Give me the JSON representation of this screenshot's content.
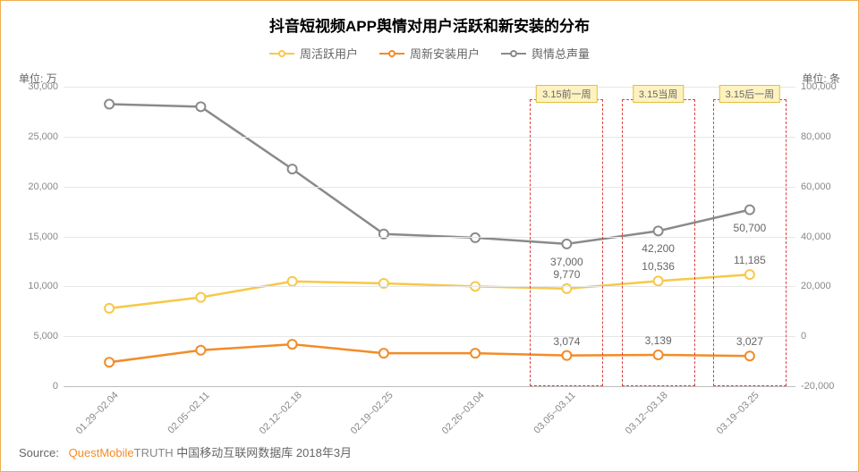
{
  "title": "抖音短视频APP舆情对用户活跃和新安装的分布",
  "title_fontsize": 17,
  "unit_left": "单位: 万",
  "unit_right": "单位: 条",
  "legend": [
    {
      "label": "周活跃用户",
      "color": "#f7c948"
    },
    {
      "label": "周新安装用户",
      "color": "#f28c28"
    },
    {
      "label": "舆情总声量",
      "color": "#8a8a8a"
    }
  ],
  "categories": [
    "01.29~02.04",
    "02.05~02.11",
    "02.12~02.18",
    "02.19~02.25",
    "02.26~03.04",
    "03.05~03.11",
    "03.12~03.18",
    "03.19~03.25"
  ],
  "left_axis": {
    "min": 0,
    "max": 30000,
    "step": 5000,
    "ticks": [
      "0",
      "5,000",
      "10,000",
      "15,000",
      "20,000",
      "25,000",
      "30,000"
    ]
  },
  "right_axis": {
    "min": -20000,
    "max": 100000,
    "step": 20000,
    "ticks": [
      "-20,000",
      "0",
      "20,000",
      "40,000",
      "60,000",
      "80,000",
      "100,000"
    ]
  },
  "series": {
    "weekly_active": {
      "axis": "left",
      "color": "#f7c948",
      "line_width": 2.5,
      "marker_size": 5,
      "values": [
        7800,
        8900,
        10500,
        10300,
        10000,
        9770,
        10536,
        11185
      ]
    },
    "weekly_install": {
      "axis": "left",
      "color": "#f28c28",
      "line_width": 2.5,
      "marker_size": 5,
      "values": [
        2400,
        3600,
        4200,
        3300,
        3300,
        3074,
        3139,
        3027
      ]
    },
    "sentiment_total": {
      "axis": "right",
      "color": "#8a8a8a",
      "line_width": 2.5,
      "marker_size": 5,
      "values": [
        93000,
        92000,
        67000,
        41000,
        39500,
        37000,
        42200,
        50700
      ]
    }
  },
  "annotations": [
    {
      "index": 5,
      "label": "3.15前一周"
    },
    {
      "index": 6,
      "label": "3.15当周"
    },
    {
      "index": 7,
      "label": "3.15后一周"
    }
  ],
  "data_labels": [
    {
      "text": "37,000",
      "index": 5,
      "series": "sentiment_total",
      "dy": 20
    },
    {
      "text": "42,200",
      "index": 6,
      "series": "sentiment_total",
      "dy": 20
    },
    {
      "text": "50,700",
      "index": 7,
      "series": "sentiment_total",
      "dy": 20
    },
    {
      "text": "9,770",
      "index": 5,
      "series": "weekly_active",
      "dy": -16
    },
    {
      "text": "10,536",
      "index": 6,
      "series": "weekly_active",
      "dy": -16
    },
    {
      "text": "11,185",
      "index": 7,
      "series": "weekly_active",
      "dy": -16
    },
    {
      "text": "3,074",
      "index": 5,
      "series": "weekly_install",
      "dy": -16
    },
    {
      "text": "3,139",
      "index": 6,
      "series": "weekly_install",
      "dy": -16
    },
    {
      "text": "3,027",
      "index": 7,
      "series": "weekly_install",
      "dy": -16
    }
  ],
  "annotation_box": {
    "border_color": "#d94040"
  },
  "grid_color": "#e6e6e6",
  "baseline_color": "#bdbdbd",
  "background_color": "#ffffff",
  "source": {
    "prefix": "Source:",
    "brand1": "QuestMobile",
    "brand2": "TRUTH",
    "rest": " 中国移动互联网数据库 2018年3月"
  }
}
